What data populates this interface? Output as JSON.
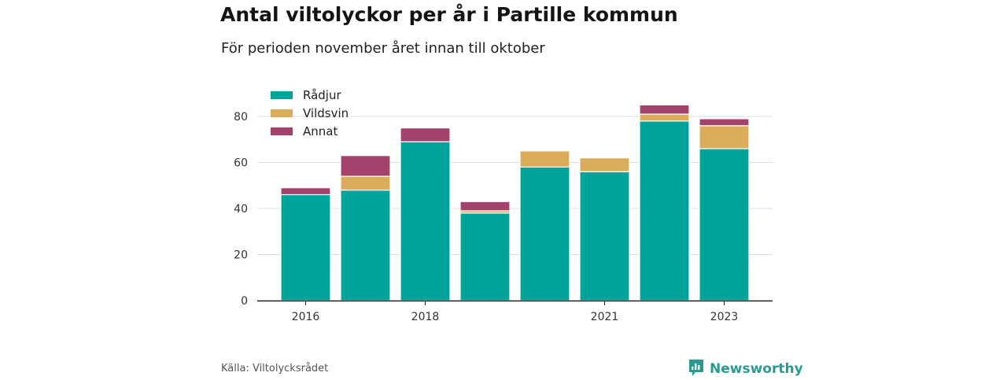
{
  "header": {
    "title": "Antal viltolyckor per år i Partille kommun",
    "subtitle": "För perioden november året innan till oktober"
  },
  "footer": {
    "source": "Källa: Viltolycksrådet",
    "brand": "Newsworthy",
    "brand_icon": "newsworthy-logo-icon"
  },
  "colors": {
    "Rådjur": "#00a39a",
    "Vildsvin": "#dbad5b",
    "Annat": "#a4426b",
    "grid": "#dddddd",
    "axis": "#222222",
    "brand": "#2a9a93"
  },
  "chart_data": {
    "type": "bar",
    "stacked": true,
    "categories": [
      "2016",
      "2017",
      "2018",
      "2019",
      "2020",
      "2021",
      "2022",
      "2023"
    ],
    "x_tick_labels": [
      "2016",
      "",
      "2018",
      "",
      "",
      "2021",
      "",
      "2023"
    ],
    "series": [
      {
        "name": "Rådjur",
        "values": [
          46,
          48,
          69,
          38,
          58,
          56,
          78,
          66
        ]
      },
      {
        "name": "Vildsvin",
        "values": [
          0,
          6,
          0,
          1,
          7,
          6,
          3,
          10
        ]
      },
      {
        "name": "Annat",
        "values": [
          3,
          9,
          6,
          4,
          0,
          0,
          4,
          3
        ]
      }
    ],
    "ylim": [
      0,
      85
    ],
    "yticks": [
      0,
      20,
      40,
      60,
      80
    ],
    "xlabel": "",
    "ylabel": "",
    "grid": true,
    "legend": "top-left"
  }
}
